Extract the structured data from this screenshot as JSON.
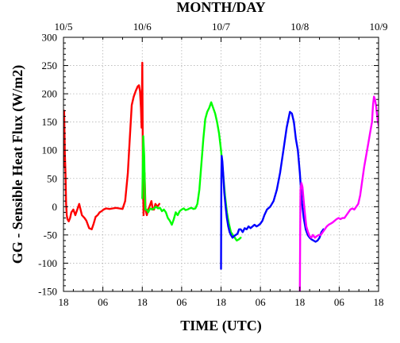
{
  "chart_data": {
    "type": "line",
    "title": "",
    "xlabel": "TIME (UTC)",
    "x2label": "MONTH/DAY",
    "ylabel": "GG - Sensible Heat Flux (W/m2)",
    "xlim": [
      0,
      96
    ],
    "ylim": [
      -150,
      300
    ],
    "yticks": [
      -150,
      -100,
      -50,
      0,
      50,
      100,
      150,
      200,
      250,
      300
    ],
    "xticks": [
      {
        "x": 0,
        "label": "18"
      },
      {
        "x": 12,
        "label": "06"
      },
      {
        "x": 24,
        "label": "18"
      },
      {
        "x": 36,
        "label": "06"
      },
      {
        "x": 48,
        "label": "18"
      },
      {
        "x": 60,
        "label": "06"
      },
      {
        "x": 72,
        "label": "18"
      },
      {
        "x": 84,
        "label": "06"
      },
      {
        "x": 96,
        "label": "18"
      }
    ],
    "x2ticks": [
      {
        "x": 0,
        "label": "10/5"
      },
      {
        "x": 24,
        "label": "10/6"
      },
      {
        "x": 48,
        "label": "10/7"
      },
      {
        "x": 72,
        "label": "10/8"
      },
      {
        "x": 96,
        "label": "10/9"
      }
    ],
    "grid": true,
    "legend": "none",
    "series": [
      {
        "color": "#ff0000",
        "x": [
          0.0,
          0.2,
          0.4,
          0.6,
          0.8,
          1.0,
          1.2,
          1.6,
          2.0,
          2.4,
          3.0,
          3.6,
          4.2,
          4.8,
          5.6,
          6.4,
          7.0,
          7.8,
          8.6,
          9.2,
          9.8,
          10.4,
          11.0,
          11.6,
          12.2,
          13.0,
          14.0,
          15.0,
          16.0,
          17.0,
          18.0,
          18.8,
          19.6,
          20.2,
          20.8,
          21.4,
          22.0,
          22.6,
          23.0,
          23.3,
          23.6,
          23.8,
          24.0,
          24.2,
          24.4,
          24.7,
          25.0,
          25.4,
          25.8,
          26.2,
          26.8,
          27.2,
          27.6,
          28.0,
          28.6,
          29.2
        ],
        "y": [
          70,
          170,
          95,
          60,
          5,
          -15,
          -22,
          -26,
          -20,
          -10,
          -5,
          -15,
          -5,
          5,
          -15,
          -20,
          -25,
          -38,
          -40,
          -30,
          -18,
          -15,
          -10,
          -8,
          -5,
          -3,
          -4,
          -3,
          -2,
          -3,
          -4,
          10,
          60,
          120,
          180,
          195,
          205,
          213,
          215,
          205,
          175,
          140,
          255,
          50,
          -15,
          60,
          -5,
          -15,
          -5,
          0,
          10,
          -5,
          -5,
          5,
          0,
          5
        ]
      },
      {
        "color": "#00ff00",
        "x": [
          24.0,
          24.3,
          24.6,
          24.9,
          25.3,
          25.8,
          26.4,
          27.0,
          27.6,
          28.2,
          28.8,
          29.4,
          30.0,
          30.6,
          31.2,
          31.8,
          32.4,
          33.0,
          33.6,
          34.2,
          34.8,
          35.4,
          36.0,
          36.6,
          37.2,
          37.8,
          38.4,
          39.0,
          39.6,
          40.2,
          40.8,
          41.4,
          42.0,
          42.6,
          43.2,
          43.8,
          44.4,
          45.0,
          45.6,
          46.2,
          46.8,
          47.4,
          48.0,
          48.6,
          49.2,
          49.8,
          50.4,
          51.0,
          51.6,
          52.2,
          52.8,
          53.4,
          54.0
        ],
        "y": [
          15,
          125,
          90,
          -5,
          -5,
          -10,
          -3,
          -5,
          -3,
          0,
          -3,
          -2,
          -8,
          -5,
          -10,
          -20,
          -25,
          -32,
          -22,
          -10,
          -15,
          -8,
          -5,
          -3,
          -6,
          -5,
          -3,
          -2,
          -4,
          -3,
          5,
          30,
          75,
          120,
          155,
          168,
          175,
          185,
          175,
          165,
          150,
          130,
          100,
          60,
          20,
          -10,
          -30,
          -45,
          -50,
          -55,
          -60,
          -58,
          -55
        ]
      },
      {
        "color": "#0000ff",
        "x": [
          48.0,
          48.1,
          48.2,
          48.4,
          48.7,
          49.0,
          49.4,
          49.8,
          50.2,
          50.6,
          51.0,
          51.5,
          52.0,
          52.5,
          53.0,
          53.5,
          54.0,
          54.6,
          55.2,
          55.8,
          56.4,
          57.0,
          57.6,
          58.2,
          58.8,
          59.4,
          60.0,
          60.6,
          61.2,
          62.0,
          63.0,
          64.0,
          65.0,
          66.0,
          67.0,
          68.0,
          69.0,
          69.6,
          70.2,
          70.8,
          71.4,
          72.0,
          72.6,
          73.2,
          73.8,
          74.4,
          75.0,
          75.6,
          76.2,
          76.8,
          77.4,
          78.0,
          78.6,
          79.2
        ],
        "y": [
          -110,
          50,
          90,
          80,
          55,
          25,
          0,
          -20,
          -35,
          -45,
          -50,
          -55,
          -52,
          -50,
          -48,
          -40,
          -40,
          -45,
          -38,
          -40,
          -35,
          -38,
          -35,
          -32,
          -35,
          -33,
          -30,
          -25,
          -15,
          -5,
          0,
          10,
          30,
          60,
          100,
          140,
          168,
          165,
          150,
          120,
          100,
          60,
          10,
          -20,
          -40,
          -50,
          -55,
          -58,
          -60,
          -62,
          -60,
          -55,
          -45,
          -40
        ]
      },
      {
        "color": "#ff00ff",
        "x": [
          72.0,
          72.2,
          72.5,
          72.8,
          73.2,
          73.6,
          74.0,
          74.5,
          75.0,
          75.5,
          76.0,
          76.6,
          77.2,
          77.8,
          78.4,
          79.0,
          79.6,
          80.2,
          80.8,
          81.4,
          82.0,
          82.6,
          83.2,
          83.8,
          84.4,
          85.0,
          85.6,
          86.2,
          86.8,
          87.4,
          88.0,
          88.6,
          89.2,
          89.8,
          90.4,
          91.0,
          91.6,
          92.2,
          92.8,
          93.4,
          94.0,
          94.3,
          94.6,
          94.9,
          95.2,
          95.5,
          95.8,
          96.2
        ],
        "y": [
          -150,
          30,
          42,
          35,
          10,
          -15,
          -35,
          -45,
          -52,
          -55,
          -50,
          -55,
          -52,
          -50,
          -50,
          -45,
          -40,
          -35,
          -32,
          -30,
          -28,
          -25,
          -22,
          -20,
          -22,
          -20,
          -20,
          -15,
          -10,
          -5,
          -3,
          -5,
          0,
          5,
          20,
          45,
          70,
          90,
          110,
          130,
          150,
          180,
          195,
          190,
          180,
          165,
          150,
          140
        ]
      }
    ]
  }
}
